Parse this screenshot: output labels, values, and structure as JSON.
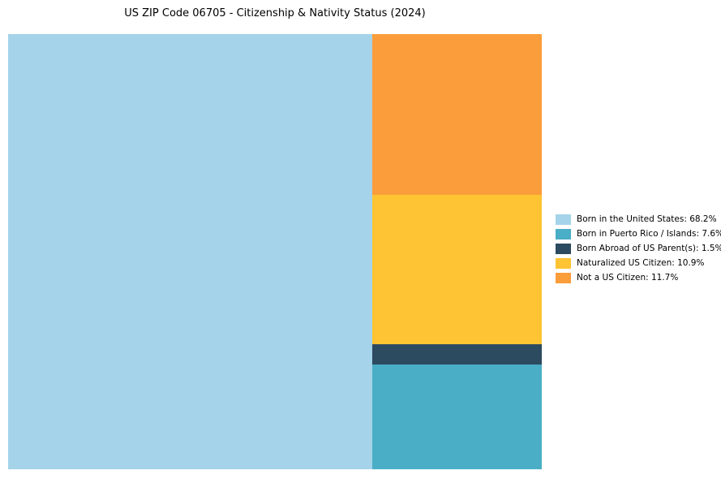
{
  "title": "US ZIP Code 06705 - Citizenship & Nativity Status (2024)",
  "chart_data": {
    "type": "treemap",
    "title": "US ZIP Code 06705 - Citizenship & Nativity Status (2024)",
    "categories": [
      "Born in the United States",
      "Born in Puerto Rico / Islands",
      "Born Abroad of US Parent(s)",
      "Naturalized US Citizen",
      "Not a US Citizen"
    ],
    "values": [
      68.2,
      7.6,
      1.5,
      10.9,
      11.7
    ],
    "colors": [
      "#A5D3E9",
      "#4AAEC6",
      "#2C4A60",
      "#FFC433",
      "#FA9D3A"
    ],
    "legend_labels": [
      "Born in the United States: 68.2%",
      "Born in Puerto Rico / Islands: 7.6%",
      "Born Abroad of US Parent(s): 1.5%",
      "Naturalized US Citizen: 10.9%",
      "Not a US Citizen: 11.7%"
    ],
    "legend_position": "right",
    "layout": {
      "left_block_index": 0,
      "right_column_order_top_to_bottom": [
        4,
        3,
        2,
        1
      ],
      "grid": false
    }
  }
}
